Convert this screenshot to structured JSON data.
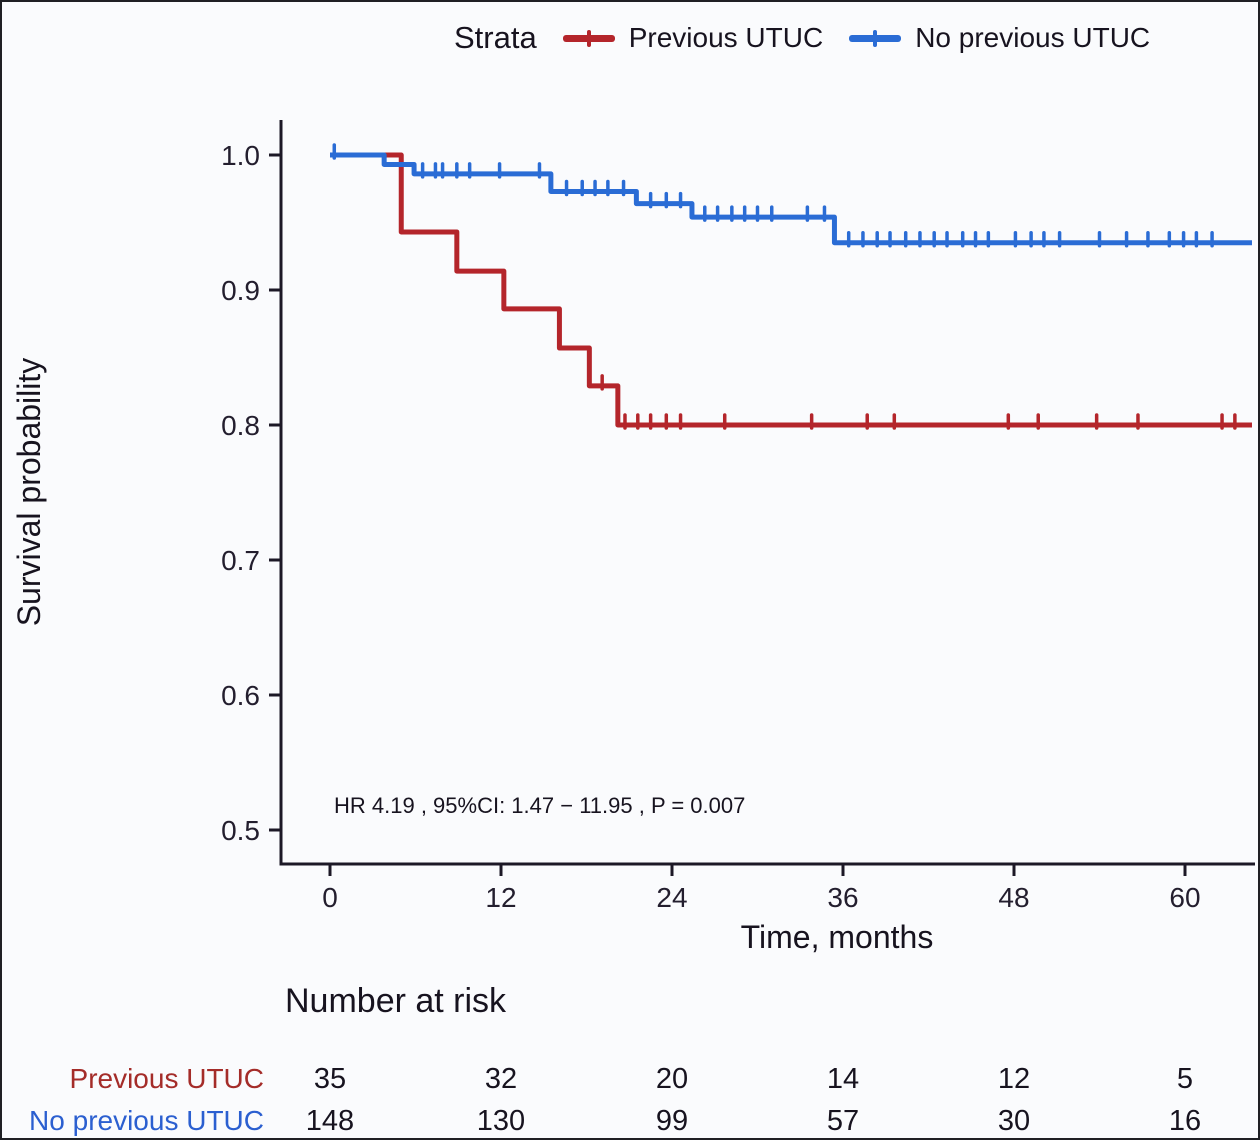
{
  "legend": {
    "title": "Strata",
    "items": [
      {
        "label": "Previous UTUC",
        "color": "#b4252b"
      },
      {
        "label": "No previous UTUC",
        "color": "#2a6cd5"
      }
    ],
    "position": "top"
  },
  "chart_data": {
    "type": "line",
    "subtype": "kaplan-meier-step",
    "title": "",
    "xlabel": "Time, months",
    "ylabel": "Survival probability",
    "xlim": [
      0,
      64.7
    ],
    "ylim": [
      0.48,
      1.0
    ],
    "x_ticks": [
      0,
      12,
      24,
      36,
      48,
      60
    ],
    "x_tick_labels": [
      "0",
      "12",
      "24",
      "36",
      "48",
      "60"
    ],
    "y_ticks": [
      1.0,
      0.9,
      0.8,
      0.7,
      0.6,
      0.5
    ],
    "y_tick_labels": [
      "1.0",
      "0.9",
      "0.8",
      "0.7",
      "0.6",
      "0.5"
    ],
    "grid": "off",
    "annotation": "HR  4.19 , 95%CI:  1.47 − 11.95 ,  P = 0.007",
    "series": [
      {
        "name": "Previous UTUC",
        "color": "#b4252b",
        "steps": [
          [
            0,
            1.0
          ],
          [
            5.0,
            0.943
          ],
          [
            8.9,
            0.914
          ],
          [
            12.2,
            0.886
          ],
          [
            16.1,
            0.857
          ],
          [
            18.2,
            0.829
          ],
          [
            20.2,
            0.8
          ]
        ],
        "end_x": 64.7,
        "censor_x": [
          19.1,
          20.7,
          21.6,
          22.5,
          23.6,
          24.6,
          27.7,
          33.8,
          37.7,
          39.6,
          47.6,
          49.7,
          53.8,
          56.7,
          62.6,
          63.5
        ]
      },
      {
        "name": "No previous UTUC",
        "color": "#2a6cd5",
        "steps": [
          [
            0,
            1.0
          ],
          [
            3.8,
            0.993
          ],
          [
            5.9,
            0.986
          ],
          [
            15.5,
            0.973
          ],
          [
            21.5,
            0.964
          ],
          [
            25.4,
            0.954
          ],
          [
            35.4,
            0.935
          ]
        ],
        "end_x": 64.7,
        "censor_x": [
          0.3,
          6.5,
          7.4,
          7.9,
          8.9,
          9.8,
          11.9,
          14.7,
          16.6,
          17.7,
          18.6,
          19.5,
          20.6,
          22.5,
          23.6,
          24.6,
          26.3,
          27.2,
          28.2,
          29.1,
          30.0,
          31.0,
          33.5,
          34.7,
          36.4,
          37.4,
          38.4,
          39.3,
          40.4,
          41.4,
          42.4,
          43.3,
          44.4,
          45.3,
          46.2,
          48.1,
          49.2,
          50.1,
          51.2,
          54.0,
          55.9,
          57.4,
          58.9,
          59.9,
          60.8,
          61.9
        ]
      }
    ],
    "risk_table": {
      "title": "Number at risk",
      "time_points": [
        0,
        12,
        24,
        36,
        48,
        60
      ],
      "rows": [
        {
          "label": "Previous UTUC",
          "color": "#a42c29",
          "counts": [
            "35",
            "32",
            "20",
            "14",
            "12",
            "5"
          ]
        },
        {
          "label": "No previous UTUC",
          "color": "#2b5fd0",
          "counts": [
            "148",
            "130",
            "99",
            "57",
            "30",
            "16"
          ]
        }
      ]
    }
  }
}
